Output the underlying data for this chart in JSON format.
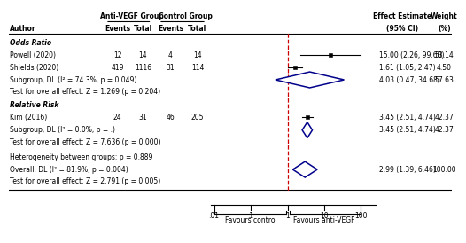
{
  "col_headers": {
    "anti_vegf": "Anti-VEGF Group",
    "control": "Control Group",
    "effect": "Effect Estimate",
    "effect2": "(95% CI)",
    "weight": "Weight",
    "weight2": "(%)"
  },
  "studies": [
    {
      "author": "Powell (2020)",
      "av_events": "12",
      "av_total": "14",
      "c_events": "4",
      "c_total": "14",
      "estimate": 15.0,
      "ci_lo": 2.26,
      "ci_hi": 99.6,
      "effect_str": "15.00 (2.26, 99.60)",
      "weight": "53.14",
      "marker_size": 3.5,
      "group": 1
    },
    {
      "author": "Shields (2020)",
      "av_events": "419",
      "av_total": "1116",
      "c_events": "31",
      "c_total": "114",
      "estimate": 1.61,
      "ci_lo": 1.05,
      "ci_hi": 2.47,
      "effect_str": "1.61 (1.05, 2.47)",
      "weight": "4.50",
      "marker_size": 2.5,
      "group": 1
    },
    {
      "author": "Kim (2016)",
      "av_events": "24",
      "av_total": "31",
      "c_events": "46",
      "c_total": "205",
      "estimate": 3.45,
      "ci_lo": 2.51,
      "ci_hi": 4.74,
      "effect_str": "3.45 (2.51, 4.74)",
      "weight": "42.37",
      "marker_size": 3.0,
      "group": 2
    }
  ],
  "subgroup1": {
    "label": "Subgroup, DL (I² = 74.3%, p = 0.049)",
    "test_label": "Test for overall effect: Z = 1.269 (p = 0.204)",
    "estimate": 4.03,
    "ci_lo": 0.47,
    "ci_hi": 34.68,
    "effect_str": "4.03 (0.47, 34.68)",
    "weight": "57.63"
  },
  "subgroup2": {
    "label": "Subgroup, DL (I² = 0.0%, p = .)",
    "test_label": "Test for overall effect: Z = 7.636 (p = 0.000)",
    "estimate": 3.45,
    "ci_lo": 2.51,
    "ci_hi": 4.74,
    "effect_str": "3.45 (2.51, 4.74)",
    "weight": "42.37"
  },
  "overall": {
    "hetero_label": "Heterogeneity between groups: p = 0.889",
    "label": "Overall, DL (I² = 81.9%, p = 0.004)",
    "test_label": "Test for overall effect: Z = 2.791 (p = 0.005)",
    "estimate": 2.99,
    "ci_lo": 1.39,
    "ci_hi": 6.46,
    "effect_str": "2.99 (1.39, 6.46)",
    "weight": "100.00"
  },
  "colors": {
    "diamond": "#00008B",
    "vline": "#CC0000",
    "marker": "black",
    "ci_line": "black",
    "text": "black"
  },
  "forest_xlim": [
    0.008,
    250
  ],
  "log_min": -2.097,
  "log_max": 2.398,
  "xtick_vals": [
    0.01,
    0.1,
    1,
    10,
    100
  ],
  "xtick_labels": [
    ".01",
    ".1",
    "1",
    "10",
    "100"
  ]
}
